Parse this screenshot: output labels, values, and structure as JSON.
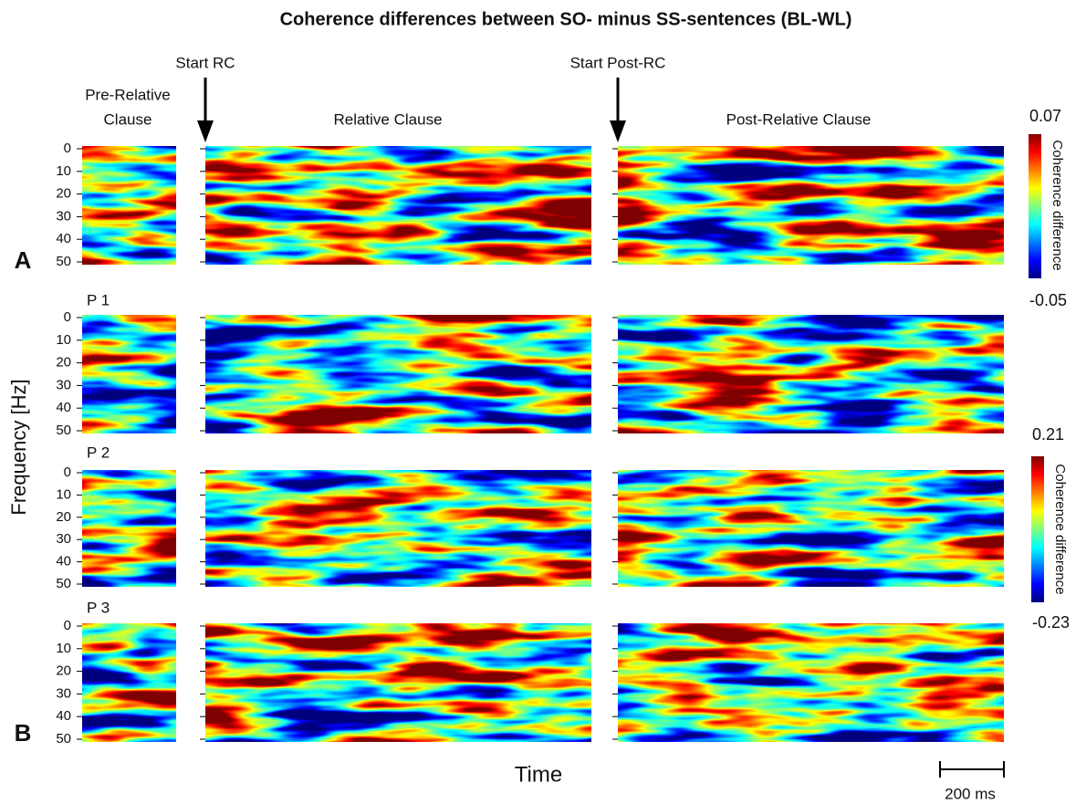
{
  "figure": {
    "title": "Coherence differences between SO- minus SS-sentences (BL-WL)",
    "markers": [
      "Start RC",
      "Start Post-RC"
    ],
    "columns": {
      "pre": [
        "Pre-Relative",
        "Clause"
      ],
      "rc": "Relative Clause",
      "post": "Post-Relative Clause"
    },
    "panel_labels": [
      "A",
      "B"
    ],
    "rows": [
      "P 1",
      "P 2",
      "P 3"
    ],
    "y_label": "Frequency [Hz]",
    "x_label": "Time",
    "scale_bar": "200 ms",
    "ylim": [
      0,
      50
    ],
    "yticks": [
      0,
      10,
      20,
      30,
      40,
      50
    ],
    "colorbars": [
      {
        "max": 0.07,
        "min": -0.05,
        "label": "Coherence difference"
      },
      {
        "max": 0.21,
        "min": -0.23,
        "label": "Coherence difference"
      }
    ]
  }
}
